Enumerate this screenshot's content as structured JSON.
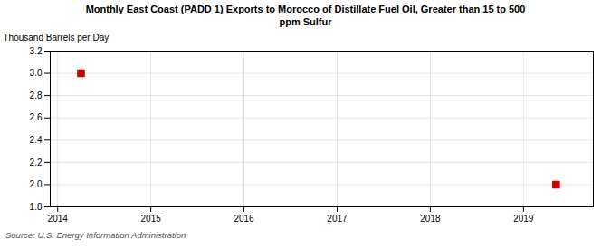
{
  "chart_data": {
    "type": "scatter",
    "title": "Monthly East Coast (PADD 1) Exports to Morocco of Distillate Fuel Oil, Greater than 15 to 500\nppm Sulfur",
    "ylabel": "Thousand Barrels per Day",
    "source": "Source: U.S. Energy Information Administration",
    "x": [
      2014.25,
      2019.35
    ],
    "values": [
      3.0,
      2.0
    ],
    "color": "#cc0000",
    "marker": "square",
    "xlim": [
      2013.92,
      2019.75
    ],
    "ylim": [
      1.8,
      3.2
    ],
    "xticks": [
      2014,
      2015,
      2016,
      2017,
      2018,
      2019
    ],
    "yticks": [
      1.8,
      {
        "value": 2.0,
        "label": "2.0"
      },
      2.2,
      2.4,
      2.6,
      2.8,
      {
        "value": 3.0,
        "label": "3.0"
      },
      3.2
    ],
    "grid": true
  }
}
